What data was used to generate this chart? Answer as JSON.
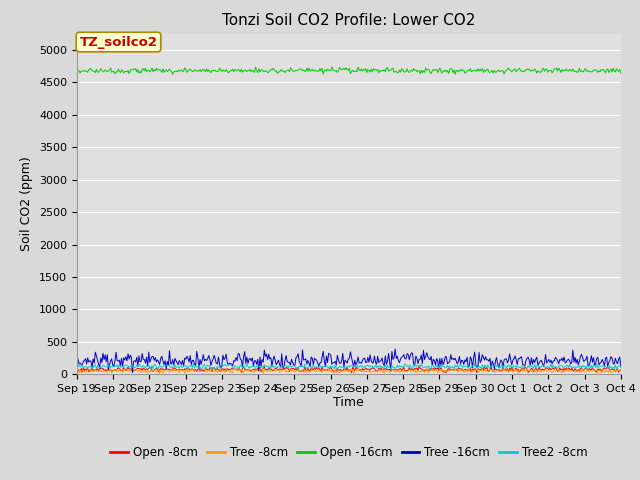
{
  "title": "Tonzi Soil CO2 Profile: Lower CO2",
  "ylabel": "Soil CO2 (ppm)",
  "xlabel": "Time",
  "annotation_text": "TZ_soilco2",
  "annotation_color": "#cc0000",
  "annotation_bg": "#ffffcc",
  "annotation_border": "#aa8800",
  "ylim": [
    0,
    5250
  ],
  "yticks": [
    0,
    500,
    1000,
    1500,
    2000,
    2500,
    3000,
    3500,
    4000,
    4500,
    5000
  ],
  "num_points": 500,
  "lines": {
    "open_8cm": {
      "color": "#ff0000",
      "base": 75,
      "noise": 18,
      "label": "Open -8cm"
    },
    "tree_8cm": {
      "color": "#ff9900",
      "base": 55,
      "noise": 15,
      "label": "Tree -8cm"
    },
    "open_16cm": {
      "color": "#00cc00",
      "base": 4680,
      "noise": 20,
      "label": "Open -16cm"
    },
    "tree_16cm": {
      "color": "#0000cc",
      "base": 210,
      "noise": 55,
      "label": "Tree -16cm"
    },
    "tree2_8cm": {
      "color": "#00cccc",
      "base": 120,
      "noise": 18,
      "label": "Tree2 -8cm"
    }
  },
  "x_tick_labels": [
    "Sep 19",
    "Sep 20",
    "Sep 21",
    "Sep 22",
    "Sep 23",
    "Sep 24",
    "Sep 25",
    "Sep 26",
    "Sep 27",
    "Sep 28",
    "Sep 29",
    "Sep 30",
    "Oct 1",
    "Oct 2",
    "Oct 3",
    "Oct 4"
  ],
  "background_color": "#d9d9d9",
  "plot_bg_color": "#e0e0e0",
  "grid_color": "#ffffff",
  "title_fontsize": 11,
  "axis_fontsize": 9,
  "tick_fontsize": 8,
  "legend_fontsize": 8.5,
  "annot_fontsize": 9.5
}
